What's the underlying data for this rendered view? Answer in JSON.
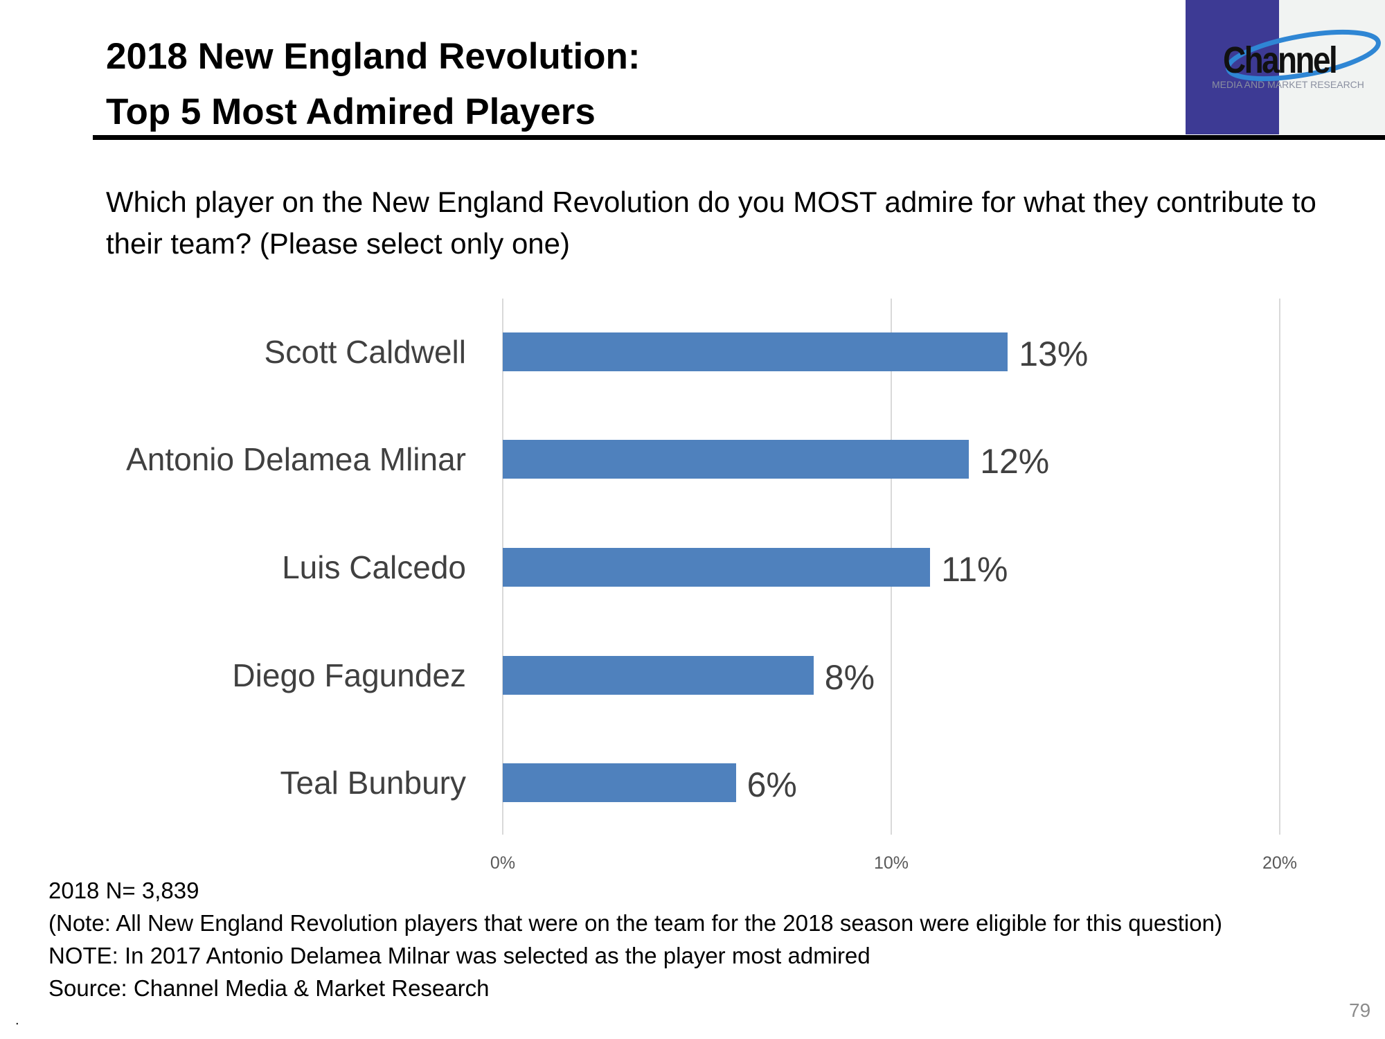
{
  "header": {
    "title_line1": "2018 New England Revolution:",
    "title_line2": "Top 5 Most Admired Players"
  },
  "logo": {
    "word": "Channel",
    "tagline": "MEDIA AND MARKET RESEARCH"
  },
  "question": "Which player on the New England Revolution do you MOST admire for what they contribute to their team? (Please select only one)",
  "chart_data": {
    "type": "bar",
    "orientation": "horizontal",
    "categories": [
      "Scott Caldwell",
      "Antonio Delamea Mlinar",
      "Luis Calcedo",
      "Diego Fagundez",
      "Teal Bunbury"
    ],
    "values": [
      13,
      12,
      11,
      8,
      6
    ],
    "value_labels": [
      "13%",
      "12%",
      "11%",
      "8%",
      "6%"
    ],
    "xlim": [
      0,
      20
    ],
    "xticks": [
      0,
      10,
      20
    ],
    "xtick_labels": [
      "0%",
      "10%",
      "20%"
    ],
    "grid": true,
    "bar_color": "#4F81BD"
  },
  "footer": {
    "lines": [
      "2018 N= 3,839",
      "(Note: All  New England Revolution players that were on the team for the 2018 season were eligible for this question)",
      "NOTE: In 2017 Antonio Delamea Milnar was selected as the player most admired",
      "Source: Channel Media & Market Research"
    ],
    "dot": ".",
    "page_number": "79"
  }
}
